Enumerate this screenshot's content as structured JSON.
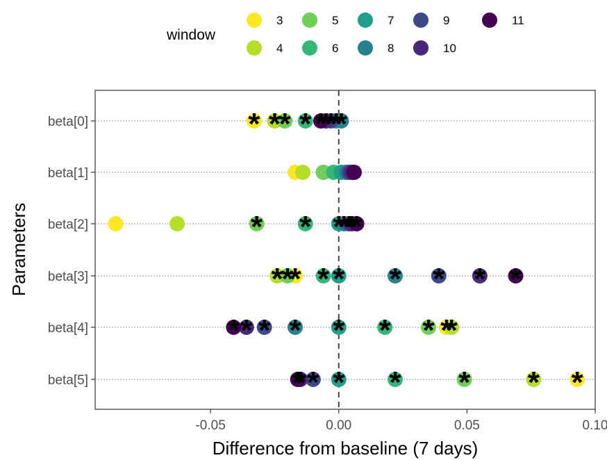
{
  "chart_data": {
    "type": "scatter",
    "title": "",
    "xlabel": "Difference from baseline (7 days)",
    "ylabel": "Parameters",
    "xlim": [
      -0.095,
      0.1
    ],
    "x_ticks": [
      -0.05,
      0.0,
      0.05,
      0.1
    ],
    "x_tick_labels": [
      "-0.05",
      "0.00",
      "0.05",
      "0.10"
    ],
    "categories": [
      "beta[0]",
      "beta[1]",
      "beta[2]",
      "beta[3]",
      "beta[4]",
      "beta[5]"
    ],
    "reference_line": {
      "x": 0,
      "style": "dashed"
    },
    "grid": "horizontal dotted lines at each parameter",
    "significance_marker": "*",
    "legend": {
      "title": "window",
      "position": "top",
      "entries": [
        {
          "label": "3",
          "color": "#FDE725"
        },
        {
          "label": "4",
          "color": "#B5DE2B"
        },
        {
          "label": "5",
          "color": "#6ECE58"
        },
        {
          "label": "6",
          "color": "#35B779"
        },
        {
          "label": "7",
          "color": "#1F9E89"
        },
        {
          "label": "8",
          "color": "#26828E"
        },
        {
          "label": "9",
          "color": "#3E4989"
        },
        {
          "label": "10",
          "color": "#482878"
        },
        {
          "label": "11",
          "color": "#440154"
        }
      ]
    },
    "series": [
      {
        "name": "3",
        "values": [
          -0.033,
          -0.017,
          -0.087,
          -0.017,
          0.042,
          0.093
        ],
        "significant": [
          true,
          false,
          false,
          true,
          true,
          true
        ]
      },
      {
        "name": "4",
        "values": [
          -0.025,
          -0.014,
          -0.063,
          -0.024,
          0.044,
          0.076
        ],
        "significant": [
          true,
          false,
          false,
          true,
          true,
          true
        ]
      },
      {
        "name": "5",
        "values": [
          -0.021,
          -0.006,
          -0.032,
          -0.02,
          0.035,
          0.049
        ],
        "significant": [
          true,
          false,
          true,
          true,
          true,
          true
        ]
      },
      {
        "name": "6",
        "values": [
          -0.013,
          -0.002,
          -0.013,
          -0.006,
          0.018,
          0.022
        ],
        "significant": [
          true,
          false,
          true,
          true,
          true,
          true
        ]
      },
      {
        "name": "7",
        "values": [
          -0.001,
          0.001,
          0.0,
          0.0,
          0.0,
          0.0
        ],
        "significant": [
          true,
          false,
          true,
          true,
          true,
          true
        ]
      },
      {
        "name": "8",
        "values": [
          0.001,
          0.003,
          0.002,
          0.022,
          -0.017,
          -0.015
        ],
        "significant": [
          true,
          false,
          true,
          true,
          true,
          true
        ]
      },
      {
        "name": "9",
        "values": [
          -0.003,
          0.004,
          0.004,
          0.039,
          -0.029,
          -0.01
        ],
        "significant": [
          true,
          false,
          true,
          true,
          true,
          true
        ]
      },
      {
        "name": "10",
        "values": [
          -0.005,
          0.005,
          0.005,
          0.055,
          -0.036,
          -0.015
        ],
        "significant": [
          true,
          false,
          true,
          true,
          true,
          true
        ]
      },
      {
        "name": "11",
        "values": [
          -0.007,
          0.006,
          0.007,
          0.069,
          -0.041,
          -0.016
        ],
        "significant": [
          true,
          false,
          true,
          true,
          true,
          true
        ]
      }
    ]
  }
}
